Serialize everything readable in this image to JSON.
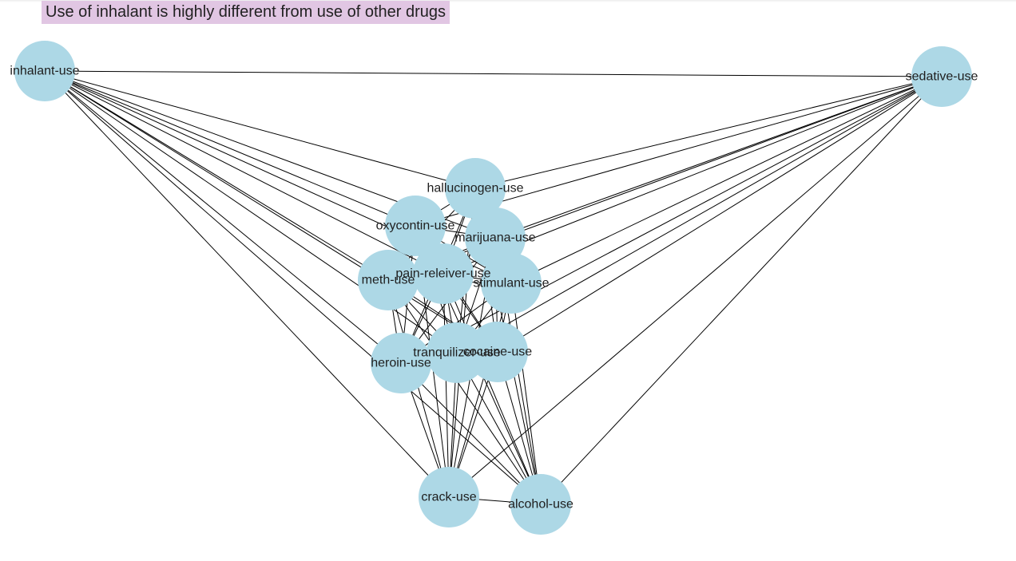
{
  "title": {
    "text": "Use of inhalant is highly different from use of other drugs",
    "background": "#e1c6e3"
  },
  "graph": {
    "node_color": "#add8e6",
    "edge_color": "#000000",
    "label_color": "#1e1e1e",
    "nodes": [
      {
        "id": "inhalant-use",
        "label": "inhalant-use"
      },
      {
        "id": "sedative-use",
        "label": "sedative-use"
      },
      {
        "id": "hallucinogen-use",
        "label": "hallucinogen-use"
      },
      {
        "id": "oxycontin-use",
        "label": "oxycontin-use"
      },
      {
        "id": "marijuana-use",
        "label": "marijuana-use"
      },
      {
        "id": "pain-releiver-use",
        "label": "pain-releiver-use"
      },
      {
        "id": "meth-use",
        "label": "meth-use"
      },
      {
        "id": "stimulant-use",
        "label": "stimulant-use"
      },
      {
        "id": "tranquilizer-use",
        "label": "tranquilizer-use"
      },
      {
        "id": "cocaine-use",
        "label": "cocaine-use"
      },
      {
        "id": "heroin-use",
        "label": "heroin-use"
      },
      {
        "id": "crack-use",
        "label": "crack-use"
      },
      {
        "id": "alcohol-use",
        "label": "alcohol-use"
      }
    ]
  }
}
